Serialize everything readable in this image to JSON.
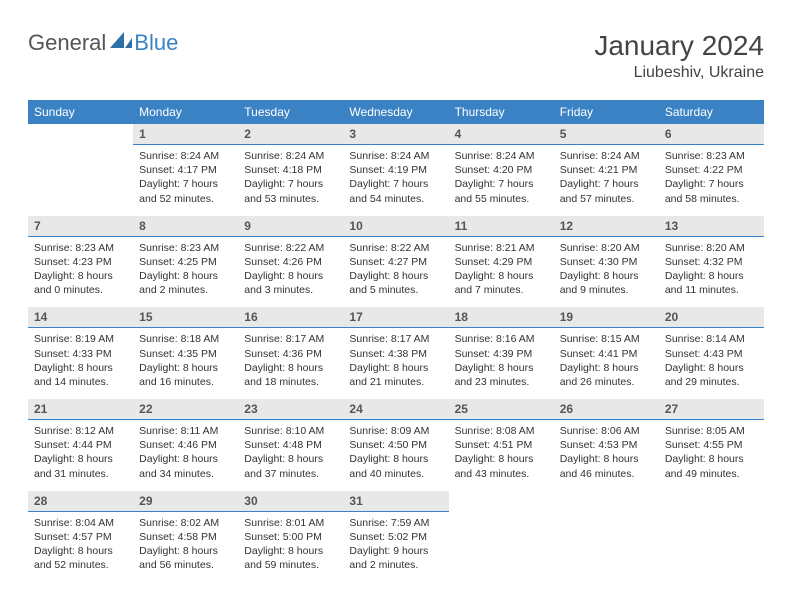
{
  "brand": {
    "part1": "General",
    "part2": "Blue",
    "logo_color": "#2f6fa8"
  },
  "title": "January 2024",
  "location": "Liubeshiv, Ukraine",
  "dow": [
    "Sunday",
    "Monday",
    "Tuesday",
    "Wednesday",
    "Thursday",
    "Friday",
    "Saturday"
  ],
  "colors": {
    "header_bg": "#3b82c4",
    "daynum_bg": "#e8e8e8",
    "daynum_border": "#3b82c4",
    "text": "#333333"
  },
  "weeks": [
    [
      {
        "num": "",
        "sunrise": "",
        "sunset": "",
        "daylight": ""
      },
      {
        "num": "1",
        "sunrise": "Sunrise: 8:24 AM",
        "sunset": "Sunset: 4:17 PM",
        "daylight": "Daylight: 7 hours and 52 minutes."
      },
      {
        "num": "2",
        "sunrise": "Sunrise: 8:24 AM",
        "sunset": "Sunset: 4:18 PM",
        "daylight": "Daylight: 7 hours and 53 minutes."
      },
      {
        "num": "3",
        "sunrise": "Sunrise: 8:24 AM",
        "sunset": "Sunset: 4:19 PM",
        "daylight": "Daylight: 7 hours and 54 minutes."
      },
      {
        "num": "4",
        "sunrise": "Sunrise: 8:24 AM",
        "sunset": "Sunset: 4:20 PM",
        "daylight": "Daylight: 7 hours and 55 minutes."
      },
      {
        "num": "5",
        "sunrise": "Sunrise: 8:24 AM",
        "sunset": "Sunset: 4:21 PM",
        "daylight": "Daylight: 7 hours and 57 minutes."
      },
      {
        "num": "6",
        "sunrise": "Sunrise: 8:23 AM",
        "sunset": "Sunset: 4:22 PM",
        "daylight": "Daylight: 7 hours and 58 minutes."
      }
    ],
    [
      {
        "num": "7",
        "sunrise": "Sunrise: 8:23 AM",
        "sunset": "Sunset: 4:23 PM",
        "daylight": "Daylight: 8 hours and 0 minutes."
      },
      {
        "num": "8",
        "sunrise": "Sunrise: 8:23 AM",
        "sunset": "Sunset: 4:25 PM",
        "daylight": "Daylight: 8 hours and 2 minutes."
      },
      {
        "num": "9",
        "sunrise": "Sunrise: 8:22 AM",
        "sunset": "Sunset: 4:26 PM",
        "daylight": "Daylight: 8 hours and 3 minutes."
      },
      {
        "num": "10",
        "sunrise": "Sunrise: 8:22 AM",
        "sunset": "Sunset: 4:27 PM",
        "daylight": "Daylight: 8 hours and 5 minutes."
      },
      {
        "num": "11",
        "sunrise": "Sunrise: 8:21 AM",
        "sunset": "Sunset: 4:29 PM",
        "daylight": "Daylight: 8 hours and 7 minutes."
      },
      {
        "num": "12",
        "sunrise": "Sunrise: 8:20 AM",
        "sunset": "Sunset: 4:30 PM",
        "daylight": "Daylight: 8 hours and 9 minutes."
      },
      {
        "num": "13",
        "sunrise": "Sunrise: 8:20 AM",
        "sunset": "Sunset: 4:32 PM",
        "daylight": "Daylight: 8 hours and 11 minutes."
      }
    ],
    [
      {
        "num": "14",
        "sunrise": "Sunrise: 8:19 AM",
        "sunset": "Sunset: 4:33 PM",
        "daylight": "Daylight: 8 hours and 14 minutes."
      },
      {
        "num": "15",
        "sunrise": "Sunrise: 8:18 AM",
        "sunset": "Sunset: 4:35 PM",
        "daylight": "Daylight: 8 hours and 16 minutes."
      },
      {
        "num": "16",
        "sunrise": "Sunrise: 8:17 AM",
        "sunset": "Sunset: 4:36 PM",
        "daylight": "Daylight: 8 hours and 18 minutes."
      },
      {
        "num": "17",
        "sunrise": "Sunrise: 8:17 AM",
        "sunset": "Sunset: 4:38 PM",
        "daylight": "Daylight: 8 hours and 21 minutes."
      },
      {
        "num": "18",
        "sunrise": "Sunrise: 8:16 AM",
        "sunset": "Sunset: 4:39 PM",
        "daylight": "Daylight: 8 hours and 23 minutes."
      },
      {
        "num": "19",
        "sunrise": "Sunrise: 8:15 AM",
        "sunset": "Sunset: 4:41 PM",
        "daylight": "Daylight: 8 hours and 26 minutes."
      },
      {
        "num": "20",
        "sunrise": "Sunrise: 8:14 AM",
        "sunset": "Sunset: 4:43 PM",
        "daylight": "Daylight: 8 hours and 29 minutes."
      }
    ],
    [
      {
        "num": "21",
        "sunrise": "Sunrise: 8:12 AM",
        "sunset": "Sunset: 4:44 PM",
        "daylight": "Daylight: 8 hours and 31 minutes."
      },
      {
        "num": "22",
        "sunrise": "Sunrise: 8:11 AM",
        "sunset": "Sunset: 4:46 PM",
        "daylight": "Daylight: 8 hours and 34 minutes."
      },
      {
        "num": "23",
        "sunrise": "Sunrise: 8:10 AM",
        "sunset": "Sunset: 4:48 PM",
        "daylight": "Daylight: 8 hours and 37 minutes."
      },
      {
        "num": "24",
        "sunrise": "Sunrise: 8:09 AM",
        "sunset": "Sunset: 4:50 PM",
        "daylight": "Daylight: 8 hours and 40 minutes."
      },
      {
        "num": "25",
        "sunrise": "Sunrise: 8:08 AM",
        "sunset": "Sunset: 4:51 PM",
        "daylight": "Daylight: 8 hours and 43 minutes."
      },
      {
        "num": "26",
        "sunrise": "Sunrise: 8:06 AM",
        "sunset": "Sunset: 4:53 PM",
        "daylight": "Daylight: 8 hours and 46 minutes."
      },
      {
        "num": "27",
        "sunrise": "Sunrise: 8:05 AM",
        "sunset": "Sunset: 4:55 PM",
        "daylight": "Daylight: 8 hours and 49 minutes."
      }
    ],
    [
      {
        "num": "28",
        "sunrise": "Sunrise: 8:04 AM",
        "sunset": "Sunset: 4:57 PM",
        "daylight": "Daylight: 8 hours and 52 minutes."
      },
      {
        "num": "29",
        "sunrise": "Sunrise: 8:02 AM",
        "sunset": "Sunset: 4:58 PM",
        "daylight": "Daylight: 8 hours and 56 minutes."
      },
      {
        "num": "30",
        "sunrise": "Sunrise: 8:01 AM",
        "sunset": "Sunset: 5:00 PM",
        "daylight": "Daylight: 8 hours and 59 minutes."
      },
      {
        "num": "31",
        "sunrise": "Sunrise: 7:59 AM",
        "sunset": "Sunset: 5:02 PM",
        "daylight": "Daylight: 9 hours and 2 minutes."
      },
      {
        "num": "",
        "sunrise": "",
        "sunset": "",
        "daylight": ""
      },
      {
        "num": "",
        "sunrise": "",
        "sunset": "",
        "daylight": ""
      },
      {
        "num": "",
        "sunrise": "",
        "sunset": "",
        "daylight": ""
      }
    ]
  ]
}
